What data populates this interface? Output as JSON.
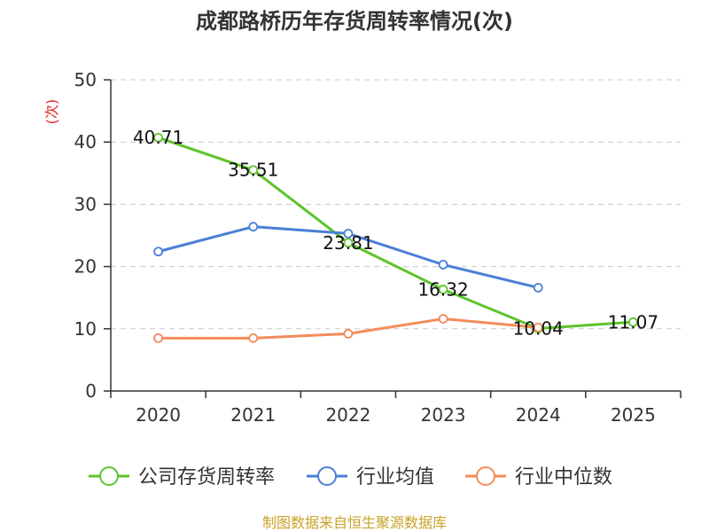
{
  "chart_data": {
    "type": "line",
    "title": "成都路桥历年存货周转率情况(次)",
    "ylabel": "(次)",
    "xlabel": "",
    "categories": [
      "2020",
      "2021",
      "2022",
      "2023",
      "2024",
      "2025"
    ],
    "ylim": [
      0,
      50
    ],
    "yticks": [
      0,
      10,
      20,
      30,
      40,
      50
    ],
    "grid": true,
    "legend_position": "bottom",
    "series": [
      {
        "name": "公司存货周转率",
        "color": "#5cc42b",
        "values": [
          40.71,
          35.51,
          23.81,
          16.32,
          10.04,
          11.07
        ],
        "labels": [
          "40.71",
          "35.51",
          "23.81",
          "16.32",
          "10.04",
          "11.07"
        ]
      },
      {
        "name": "行业均值",
        "color": "#4a7fd6",
        "values": [
          22.4,
          26.4,
          25.3,
          20.3,
          16.6,
          null
        ]
      },
      {
        "name": "行业中位数",
        "color": "#f48b5a",
        "values": [
          8.5,
          8.5,
          9.2,
          11.6,
          10.2,
          null
        ]
      }
    ],
    "source": "制图数据来自恒生聚源数据库"
  }
}
